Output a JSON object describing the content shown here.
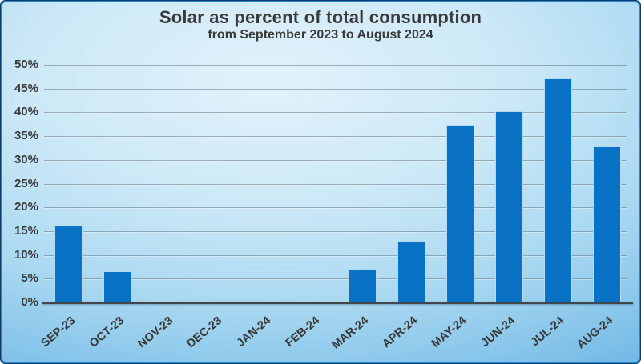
{
  "chart_data": {
    "type": "bar",
    "title": "Solar as percent of total consumption",
    "subtitle": "from September 2023 to August 2024",
    "categories": [
      "SEP-23",
      "OCT-23",
      "NOV-23",
      "DEC-23",
      "JAN-24",
      "FEB-24",
      "MAR-24",
      "APR-24",
      "MAY-24",
      "JUN-24",
      "JUL-24",
      "AUG-24"
    ],
    "values": [
      16.2,
      6.5,
      0.4,
      0,
      0,
      0.4,
      7.0,
      13.0,
      37.3,
      40.3,
      47.1,
      32.8
    ],
    "unit": "%",
    "xlabel": "",
    "ylabel": "",
    "ylim": [
      0,
      50
    ],
    "y_tick_step": 5,
    "y_tick_labels": [
      "0%",
      "5%",
      "10%",
      "15%",
      "20%",
      "25%",
      "30%",
      "35%",
      "40%",
      "45%",
      "50%"
    ],
    "grid": true,
    "legend_position": "none",
    "colors": {
      "bar_fill": "#0a72c4",
      "bar_edge": "#b4daf1",
      "grid_line": "#64767f",
      "axis_line": "#3f474c",
      "text": "#3a3a3a",
      "background_center": "#e2f2fb",
      "background_edge": "#3f9cd6",
      "border": "#2489d3"
    }
  }
}
